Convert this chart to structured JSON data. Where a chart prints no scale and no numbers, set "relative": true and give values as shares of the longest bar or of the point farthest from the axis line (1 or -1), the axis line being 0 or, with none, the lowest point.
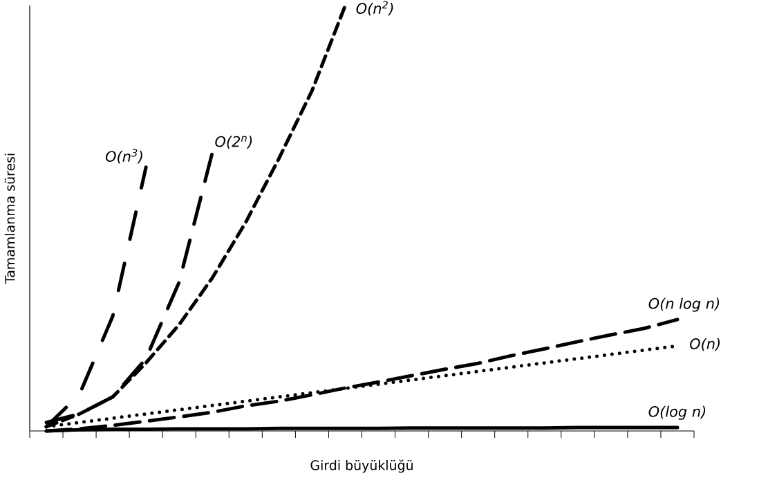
{
  "chart_data": {
    "type": "line",
    "relative": true,
    "xlabel": "Girdi büyüklüğü",
    "ylabel": "Tamamlanma süresi",
    "categories": [
      null,
      null,
      null,
      null,
      null,
      null,
      null,
      null,
      null,
      null,
      null,
      null,
      null,
      null,
      null,
      null,
      null,
      null,
      null,
      null
    ],
    "series": [
      {
        "name": "O(n$^{3}$)",
        "color": "#000000",
        "line_style": "dashdotdot",
        "values": [
          0.01,
          0.086,
          0.27,
          0.62,
          null,
          null,
          null,
          null,
          null,
          null,
          null,
          null,
          null,
          null,
          null,
          null,
          null,
          null,
          null,
          null
        ]
      },
      {
        "name": "O(2$^{n}$)",
        "color": "#000000",
        "line_style": "dashdot",
        "values": [
          0.02,
          0.04,
          0.08,
          0.17,
          0.35,
          0.655,
          null,
          null,
          null,
          null,
          null,
          null,
          null,
          null,
          null,
          null,
          null,
          null,
          null,
          null
        ]
      },
      {
        "name": "O(n$^{2}$)",
        "color": "#000000",
        "line_style": "dashed",
        "values": [
          0.01,
          0.04,
          0.08,
          0.16,
          0.25,
          0.36,
          0.49,
          0.64,
          0.8,
          1.0,
          null,
          null,
          null,
          null,
          null,
          null,
          null,
          null,
          null,
          null
        ]
      },
      {
        "name": "O(n log n)",
        "color": "#000000",
        "line_style": "longdash",
        "values": [
          0,
          0.005,
          0.013,
          0.023,
          0.033,
          0.044,
          0.059,
          0.07,
          0.085,
          0.101,
          0.115,
          0.13,
          0.145,
          0.159,
          0.177,
          0.193,
          0.21,
          0.226,
          0.241,
          0.262
        ]
      },
      {
        "name": "O(n)",
        "color": "#000000",
        "line_style": "dotted",
        "values": [
          0.01,
          0.02,
          0.03,
          0.04,
          0.05,
          0.06,
          0.07,
          0.08,
          0.09,
          0.1,
          0.11,
          0.12,
          0.13,
          0.14,
          0.15,
          0.16,
          0.17,
          0.18,
          0.19,
          0.2
        ]
      },
      {
        "name": "O(log n)",
        "color": "#000000",
        "line_style": "solid",
        "values": [
          0,
          0.003,
          0.004,
          0.004,
          0.005,
          0.005,
          0.005,
          0.006,
          0.006,
          0.006,
          0.006,
          0.007,
          0.007,
          0.007,
          0.007,
          0.007,
          0.008,
          0.008,
          0.008,
          0.008
        ]
      }
    ]
  }
}
